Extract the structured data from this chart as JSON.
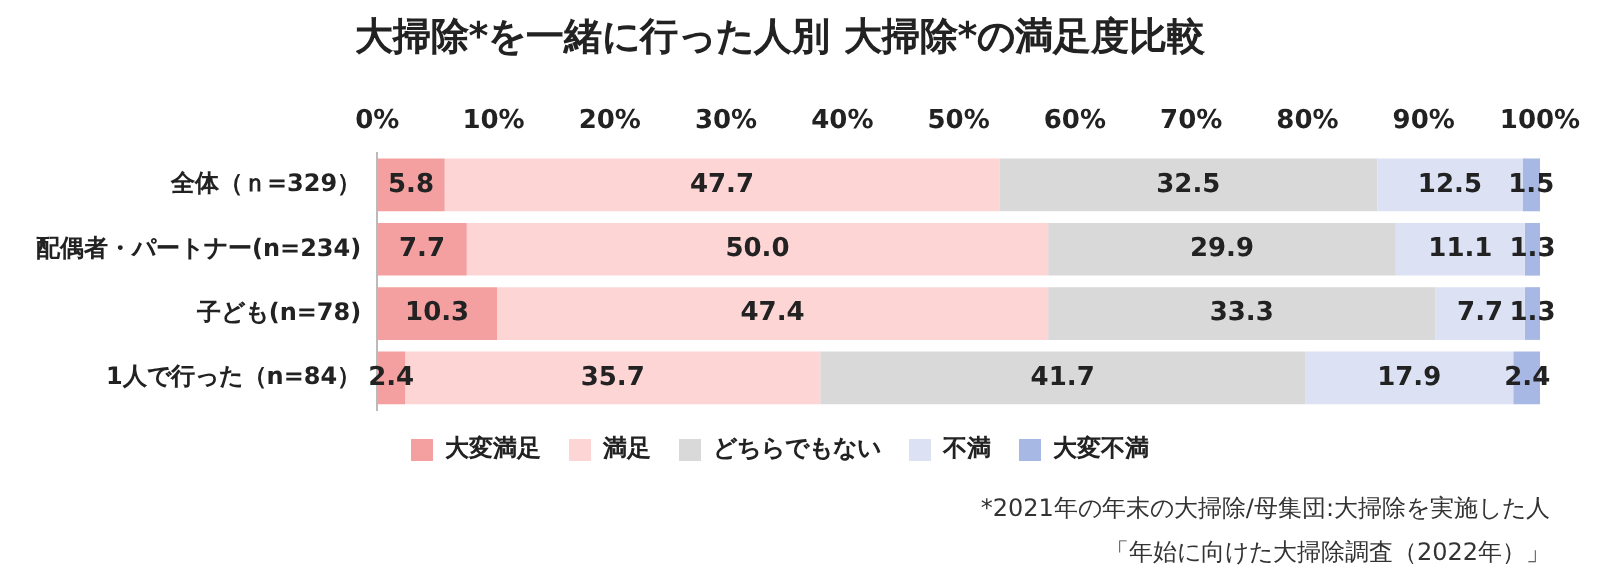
{
  "chart_data": {
    "type": "bar",
    "orientation": "horizontal",
    "stacked": true,
    "title": "大掃除*を一緒に行った人別 大掃除*の満足度比較",
    "categories": [
      "全体（ｎ=329）",
      "配偶者・パートナー(n=234)",
      "子ども(n=78)",
      "1人で行った（n=84）"
    ],
    "series": [
      {
        "name": "大変満足",
        "color": "#f4a0a0",
        "values": [
          5.8,
          7.7,
          10.3,
          2.4
        ]
      },
      {
        "name": "満足",
        "color": "#fdd5d5",
        "values": [
          47.7,
          50.0,
          47.4,
          35.7
        ]
      },
      {
        "name": "どちらでもない",
        "color": "#d9d9d9",
        "values": [
          32.5,
          29.9,
          33.3,
          41.7
        ]
      },
      {
        "name": "不満",
        "color": "#dce2f4",
        "values": [
          12.5,
          11.1,
          7.7,
          17.9
        ]
      },
      {
        "name": "大変不満",
        "color": "#a8b8e4",
        "values": [
          1.5,
          1.3,
          1.3,
          2.4
        ]
      }
    ],
    "value_labels": [
      [
        "5.8",
        "7.7",
        "10.3",
        "2.4"
      ],
      [
        "47.7",
        "50.0",
        "47.4",
        "35.7"
      ],
      [
        "32.5",
        "29.9",
        "33.3",
        "41.7"
      ],
      [
        "12.5",
        "11.1",
        "7.7",
        "17.9"
      ],
      [
        "1.5",
        "1.3",
        "1.3",
        "2.4"
      ]
    ],
    "xlim": [
      0,
      100
    ],
    "xticks": [
      {
        "value": 0,
        "label": "0%"
      },
      {
        "value": 10,
        "label": "10%"
      },
      {
        "value": 20,
        "label": "20%"
      },
      {
        "value": 30,
        "label": "30%"
      },
      {
        "value": 40,
        "label": "40%"
      },
      {
        "value": 50,
        "label": "50%"
      },
      {
        "value": 60,
        "label": "60%"
      },
      {
        "value": 70,
        "label": "70%"
      },
      {
        "value": 80,
        "label": "80%"
      },
      {
        "value": 90,
        "label": "90%"
      },
      {
        "value": 100,
        "label": "100%"
      }
    ],
    "grid": false,
    "legend": "bottom",
    "annotations": [
      "*2021年の年末の大掃除/母集団:大掃除を実施した人",
      "「年始に向けた大掃除調査（2022年）」"
    ]
  }
}
